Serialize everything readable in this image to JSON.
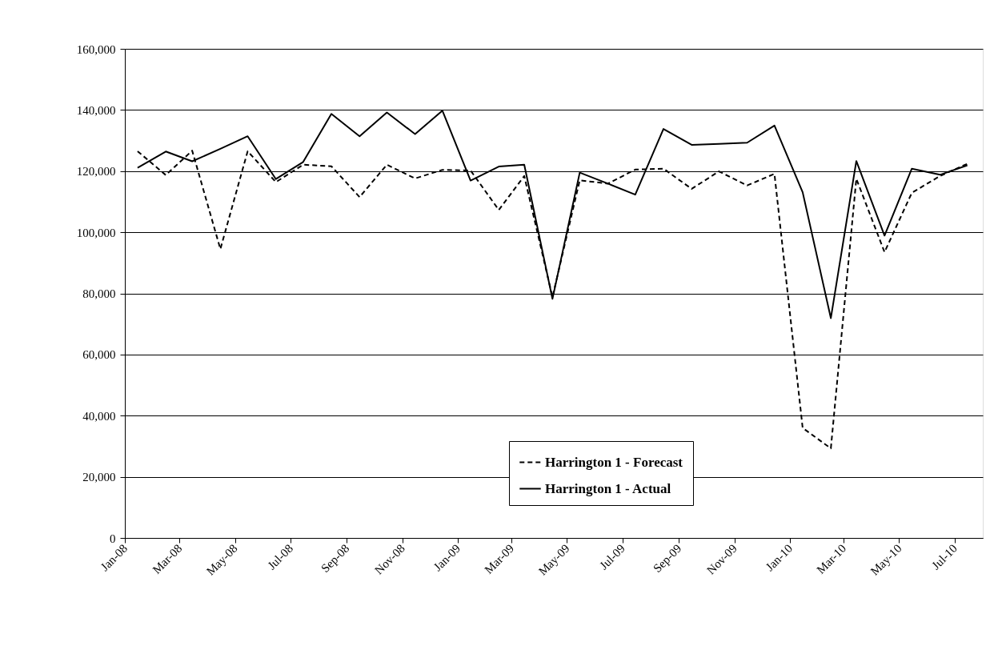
{
  "chart_data": {
    "type": "line",
    "x": [
      "2008-01-15",
      "2008-02-15",
      "2008-03-15",
      "2008-04-15",
      "2008-05-15",
      "2008-06-15",
      "2008-07-15",
      "2008-08-15",
      "2008-09-15",
      "2008-10-15",
      "2008-11-15",
      "2008-12-15",
      "2009-01-15",
      "2009-02-15",
      "2009-03-15",
      "2009-04-15",
      "2009-05-15",
      "2009-06-15",
      "2009-07-15",
      "2009-08-15",
      "2009-09-15",
      "2009-10-15",
      "2009-11-15",
      "2009-12-15",
      "2010-01-15",
      "2010-02-15",
      "2010-03-15",
      "2010-04-15",
      "2010-05-15",
      "2010-06-15",
      "2010-07-15"
    ],
    "series": [
      {
        "name": "Harrington 1 - Forecast",
        "color": "#000000",
        "line_style": "dashed",
        "values": [
          126500,
          118700,
          126700,
          94500,
          126500,
          116400,
          122100,
          121600,
          111500,
          122100,
          117600,
          120400,
          120200,
          107300,
          118400,
          78800,
          117000,
          115900,
          120500,
          120800,
          114200,
          119900,
          115300,
          119100,
          36000,
          29300,
          117500,
          93500,
          112900,
          118400,
          122400
        ]
      },
      {
        "name": "Harrington 1 - Actual",
        "color": "#000000",
        "line_style": "solid",
        "values": [
          121100,
          126400,
          123200,
          127300,
          131400,
          117400,
          123000,
          138700,
          131400,
          139200,
          132100,
          139800,
          116900,
          121500,
          122100,
          78200,
          119500,
          115900,
          112300,
          133800,
          128600,
          128900,
          129300,
          134900,
          113100,
          71900,
          123300,
          98900,
          120800,
          118800,
          121900
        ]
      }
    ],
    "xlim": [
      "2008-01-01",
      "2010-08-01"
    ],
    "xticks": [
      {
        "value": "2008-01-01",
        "label": "Jan-08"
      },
      {
        "value": "2008-03-01",
        "label": "Mar-08"
      },
      {
        "value": "2008-05-01",
        "label": "May-08"
      },
      {
        "value": "2008-07-01",
        "label": "Jul-08"
      },
      {
        "value": "2008-09-01",
        "label": "Sep-08"
      },
      {
        "value": "2008-11-01",
        "label": "Nov-08"
      },
      {
        "value": "2009-01-01",
        "label": "Jan-09"
      },
      {
        "value": "2009-03-01",
        "label": "Mar-09"
      },
      {
        "value": "2009-05-01",
        "label": "May-09"
      },
      {
        "value": "2009-07-01",
        "label": "Jul-09"
      },
      {
        "value": "2009-09-01",
        "label": "Sep-09"
      },
      {
        "value": "2009-11-01",
        "label": "Nov-09"
      },
      {
        "value": "2010-01-01",
        "label": "Jan-10"
      },
      {
        "value": "2010-03-01",
        "label": "Mar-10"
      },
      {
        "value": "2010-05-01",
        "label": "May-10"
      },
      {
        "value": "2010-07-01",
        "label": "Jul-10"
      }
    ],
    "ylim": [
      0,
      160000
    ],
    "yticks": [
      {
        "value": 0,
        "label": "0"
      },
      {
        "value": 20000,
        "label": "20,000"
      },
      {
        "value": 40000,
        "label": "40,000"
      },
      {
        "value": 60000,
        "label": "60,000"
      },
      {
        "value": 80000,
        "label": "80,000"
      },
      {
        "value": 100000,
        "label": "100,000"
      },
      {
        "value": 120000,
        "label": "120,000"
      },
      {
        "value": 140000,
        "label": "140,000"
      },
      {
        "value": 160000,
        "label": "160,000"
      }
    ],
    "grid": "y",
    "legend": "bottom right",
    "marker": "none"
  }
}
